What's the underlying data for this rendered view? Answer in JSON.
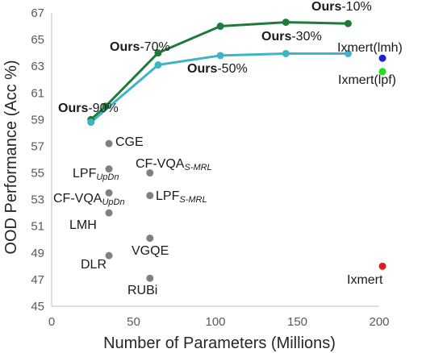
{
  "chart_data": {
    "type": "scatter",
    "xlabel": "Number of Parameters (Millions)",
    "ylabel": "OOD Performance (Acc %)",
    "xlim": [
      0,
      200
    ],
    "ylim": [
      45,
      67
    ],
    "xticks": [
      0,
      50,
      100,
      150,
      200
    ],
    "yticks": [
      45,
      47,
      49,
      51,
      53,
      55,
      57,
      59,
      61,
      63,
      65,
      67
    ],
    "grid": false,
    "legend": "none",
    "series": [
      {
        "color": "#1e7b3c",
        "style": "line-markers",
        "points": [
          {
            "x": 24,
            "y": 59.0,
            "label": ""
          },
          {
            "x": 33,
            "y": 60.0,
            "label": ""
          },
          {
            "x": 65,
            "y": 64.0,
            "label": ""
          },
          {
            "x": 103,
            "y": 66.0,
            "label": ""
          },
          {
            "x": 143,
            "y": 66.3,
            "label": ""
          },
          {
            "x": 181,
            "y": 66.2,
            "label": ""
          }
        ]
      },
      {
        "color": "#3fb4c4",
        "style": "line-markers",
        "points": [
          {
            "x": 24,
            "y": 58.8,
            "label": ""
          },
          {
            "x": 65,
            "y": 63.1,
            "label": ""
          },
          {
            "x": 103,
            "y": 63.8,
            "label": ""
          },
          {
            "x": 143,
            "y": 63.95,
            "label": ""
          },
          {
            "x": 181,
            "y": 63.95,
            "label": ""
          }
        ]
      },
      {
        "color": "#808080",
        "style": "markers",
        "points": [
          {
            "x": 35,
            "y": 57.2
          },
          {
            "x": 35,
            "y": 55.3
          },
          {
            "x": 60,
            "y": 55.0
          },
          {
            "x": 35,
            "y": 53.5
          },
          {
            "x": 60,
            "y": 53.3
          },
          {
            "x": 35,
            "y": 52.0
          },
          {
            "x": 60,
            "y": 50.1
          },
          {
            "x": 35,
            "y": 48.8
          },
          {
            "x": 60,
            "y": 47.1
          }
        ]
      },
      {
        "color": "#1f1fd6",
        "style": "markers",
        "points": [
          {
            "x": 202,
            "y": 63.6
          }
        ]
      },
      {
        "color": "#22dd22",
        "style": "markers",
        "points": [
          {
            "x": 202,
            "y": 62.6
          }
        ]
      },
      {
        "color": "#e01b1b",
        "style": "markers",
        "points": [
          {
            "x": 202,
            "y": 48.0
          }
        ]
      }
    ],
    "annotations": [
      {
        "bold": "Ours",
        "text": "-10%",
        "sub": ""
      },
      {
        "bold": "Ours",
        "text": "-30%",
        "sub": ""
      },
      {
        "bold": "Ours",
        "text": "-50%",
        "sub": ""
      },
      {
        "bold": "Ours",
        "text": "-70%",
        "sub": ""
      },
      {
        "bold": "Ours",
        "text": "-90%",
        "sub": ""
      },
      {
        "bold": "",
        "text": "Ixmert(lmh)",
        "sub": ""
      },
      {
        "bold": "",
        "text": "Ixmert(lpf)",
        "sub": ""
      },
      {
        "bold": "",
        "text": "Ixmert",
        "sub": ""
      },
      {
        "bold": "",
        "text": "CGE",
        "sub": ""
      },
      {
        "bold": "",
        "text": "LPF",
        "sub": "UpDn"
      },
      {
        "bold": "",
        "text": "CF-VQA",
        "sub": "S-MRL"
      },
      {
        "bold": "",
        "text": "CF-VQA",
        "sub": "UpDn"
      },
      {
        "bold": "",
        "text": "LPF",
        "sub": "S-MRL"
      },
      {
        "bold": "",
        "text": "LMH",
        "sub": ""
      },
      {
        "bold": "",
        "text": "VGQE",
        "sub": ""
      },
      {
        "bold": "",
        "text": "DLR",
        "sub": ""
      },
      {
        "bold": "",
        "text": "RUBi",
        "sub": ""
      }
    ]
  }
}
